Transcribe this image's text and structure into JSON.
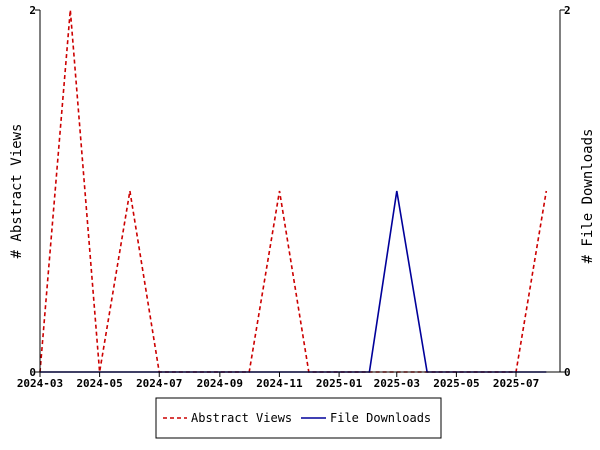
{
  "chart_data": {
    "type": "line",
    "title": "",
    "y_left_label": "# Abstract Views",
    "y_right_label": "# File Downloads",
    "x_tick_labels": [
      "2024-03",
      "2024-05",
      "2024-07",
      "2024-09",
      "2024-11",
      "2025-01",
      "2025-03",
      "2025-05",
      "2025-07"
    ],
    "x_ticks": [
      "2024-03-01",
      "2024-05-01",
      "2024-07-01",
      "2024-09-01",
      "2024-11-01",
      "2025-01-01",
      "2025-03-01",
      "2025-05-01",
      "2025-07-01"
    ],
    "x_range": [
      "2024-03-01",
      "2025-08-15"
    ],
    "ylim": [
      0,
      2
    ],
    "y_ticks": [
      0,
      2
    ],
    "legend_position": "bottom",
    "series": [
      {
        "name": "Abstract Views",
        "color": "#cc0000",
        "style": "dashed",
        "axis": "left",
        "x": [
          "2024-03-01",
          "2024-04-01",
          "2024-05-01",
          "2024-06-01",
          "2024-07-01",
          "2024-08-01",
          "2024-09-01",
          "2024-10-01",
          "2024-11-01",
          "2024-12-01",
          "2025-01-01",
          "2025-02-01",
          "2025-03-01",
          "2025-04-01",
          "2025-05-01",
          "2025-06-01",
          "2025-07-01",
          "2025-08-01"
        ],
        "y": [
          0,
          2,
          0,
          1,
          0,
          0,
          0,
          0,
          1,
          0,
          0,
          0,
          0,
          0,
          0,
          0,
          0,
          1
        ]
      },
      {
        "name": "File Downloads",
        "color": "#00009a",
        "style": "solid",
        "axis": "right",
        "x": [
          "2024-03-01",
          "2024-04-01",
          "2024-05-01",
          "2024-06-01",
          "2024-07-01",
          "2024-08-01",
          "2024-09-01",
          "2024-10-01",
          "2024-11-01",
          "2024-12-01",
          "2025-01-01",
          "2025-02-01",
          "2025-03-01",
          "2025-04-01",
          "2025-05-01",
          "2025-06-01",
          "2025-07-01",
          "2025-08-01"
        ],
        "y": [
          0,
          0,
          0,
          0,
          0,
          0,
          0,
          0,
          0,
          0,
          0,
          0,
          1,
          0,
          0,
          0,
          0,
          0
        ]
      }
    ]
  }
}
